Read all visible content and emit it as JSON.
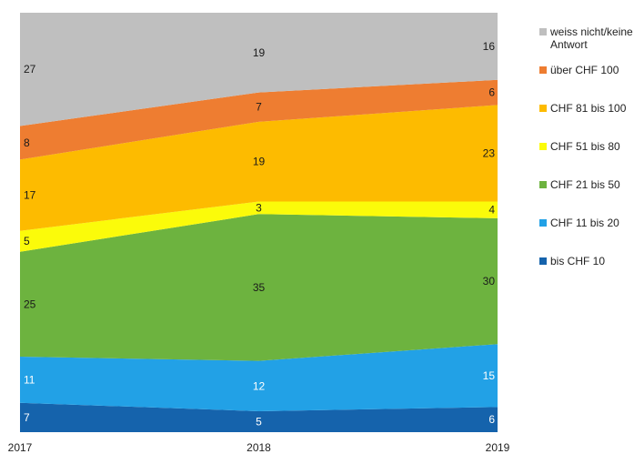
{
  "chart_data": {
    "type": "area",
    "stacked": true,
    "percent": true,
    "x": [
      "2017",
      "2018",
      "2019"
    ],
    "ylim": [
      0,
      100
    ],
    "legend_position": "right",
    "series": [
      {
        "name": "bis CHF 10",
        "values": [
          7,
          5,
          6
        ],
        "color": "#1563ac",
        "label_color": "#ffffff"
      },
      {
        "name": "CHF 11 bis 20",
        "values": [
          11,
          12,
          15
        ],
        "color": "#22a1e6",
        "label_color": "#ffffff"
      },
      {
        "name": "CHF 21 bis 50",
        "values": [
          25,
          35,
          30
        ],
        "color": "#6db33f",
        "label_color": "#1a1a1a"
      },
      {
        "name": "CHF 51 bis 80",
        "values": [
          5,
          3,
          4
        ],
        "color": "#fbfb0a",
        "label_color": "#1a1a1a"
      },
      {
        "name": "CHF 81 bis 100",
        "values": [
          17,
          19,
          23
        ],
        "color": "#fdbb00",
        "label_color": "#1a1a1a"
      },
      {
        "name": "über CHF 100",
        "values": [
          8,
          7,
          6
        ],
        "color": "#ee7d31",
        "label_color": "#1a1a1a"
      },
      {
        "name": "weiss nicht/keine Antwort",
        "values": [
          27,
          19,
          16
        ],
        "color": "#bfbfbf",
        "label_color": "#1a1a1a"
      }
    ]
  }
}
